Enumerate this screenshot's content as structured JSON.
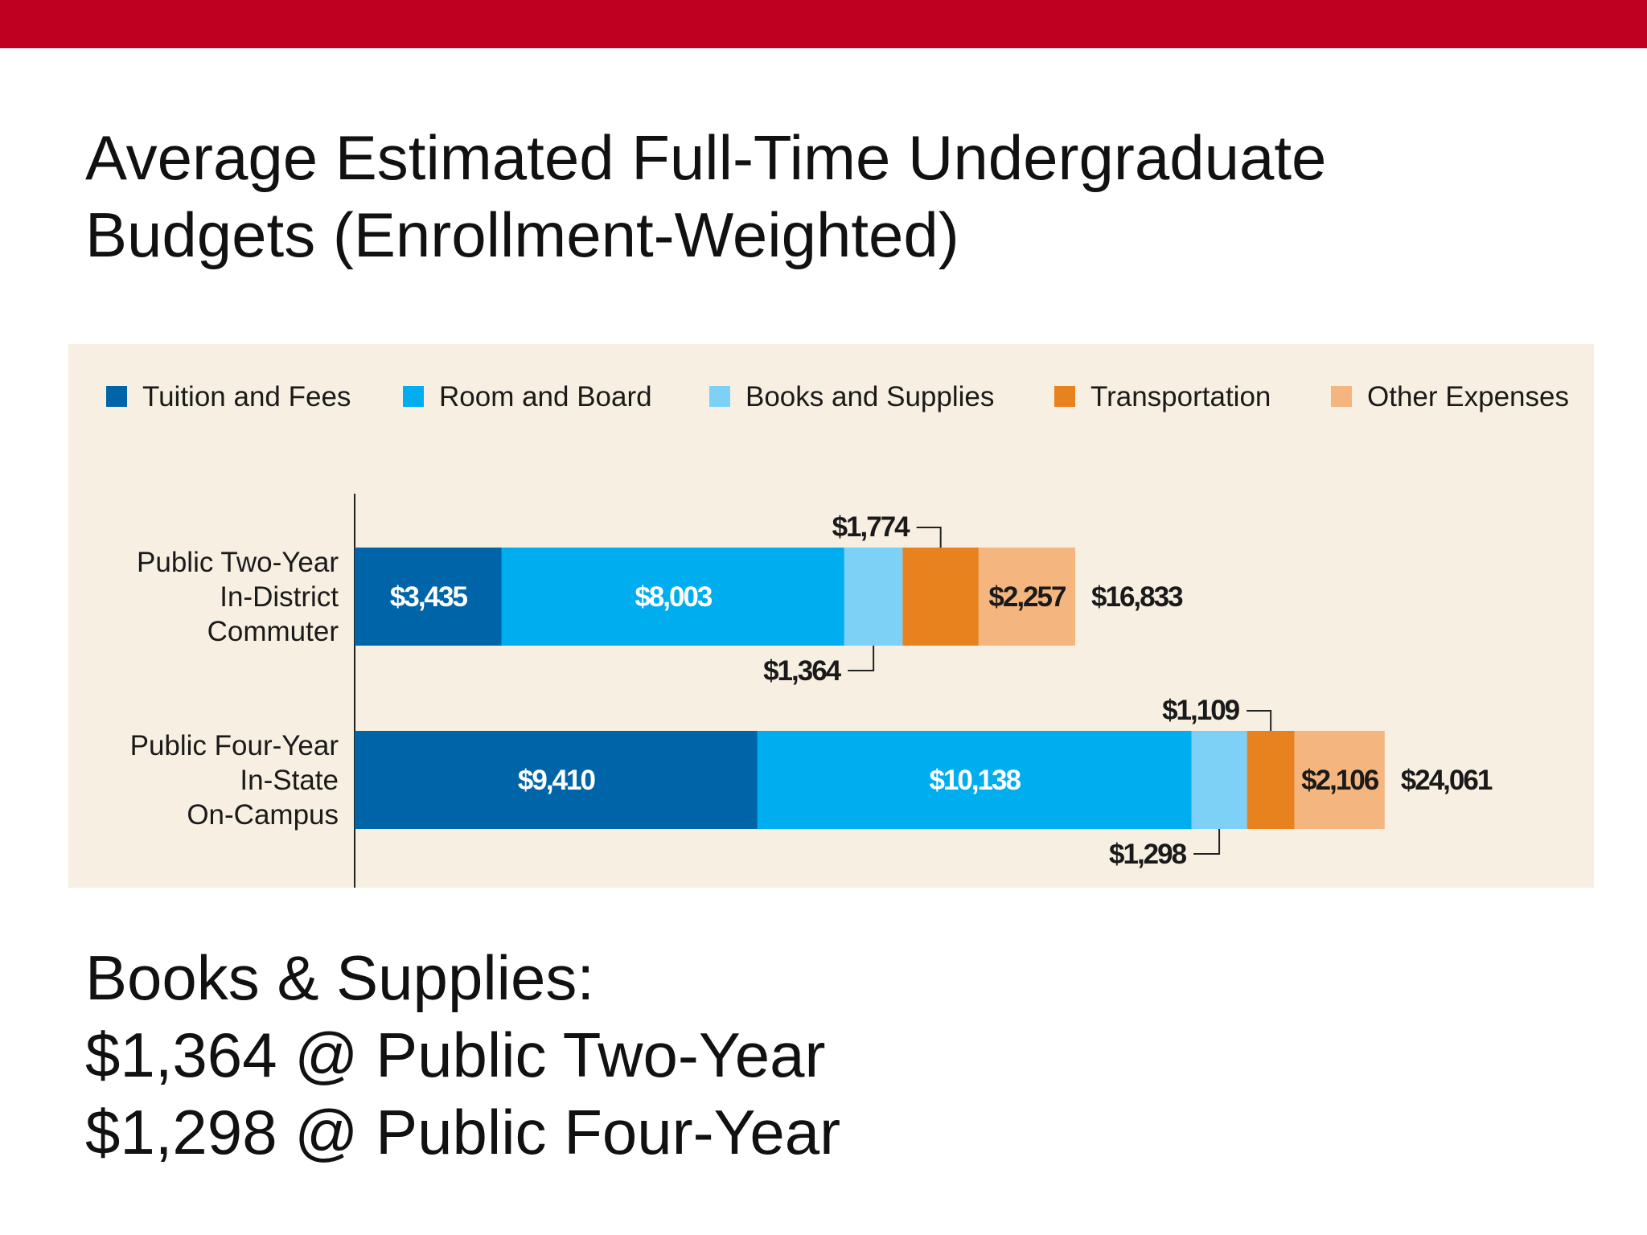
{
  "slide": {
    "title_lines": [
      "Average Estimated Full-Time Undergraduate",
      "Budgets (Enrollment-Weighted)"
    ],
    "caption_lines": [
      "Books & Supplies:",
      "$1,364 @ Public Two-Year",
      "$1,298 @ Public Four-Year"
    ]
  },
  "colors": {
    "top_bar": "#c00020",
    "panel_background": "#f7efe2"
  },
  "chart_data": {
    "type": "bar",
    "orientation": "horizontal",
    "stacked": true,
    "xlim": [
      0,
      25000
    ],
    "grid": false,
    "legend_position": "top",
    "categories": [
      [
        "Public Two-Year",
        "In-District",
        "Commuter"
      ],
      [
        "Public Four-Year",
        "In-State",
        "On-Campus"
      ]
    ],
    "series": [
      {
        "name": "Tuition and Fees",
        "color": "#0065a8",
        "values": [
          3435,
          9410
        ],
        "labels": [
          "$3,435",
          "$9,410"
        ]
      },
      {
        "name": "Room and Board",
        "color": "#00aeef",
        "values": [
          8003,
          10138
        ],
        "labels": [
          "$8,003",
          "$10,138"
        ]
      },
      {
        "name": "Books and Supplies",
        "color": "#7dd1f6",
        "values": [
          1364,
          1298
        ],
        "labels": [
          "$1,364",
          "$1,298"
        ]
      },
      {
        "name": "Transportation",
        "color": "#e8821e",
        "values": [
          1774,
          1109
        ],
        "labels": [
          "$1,774",
          "$1,109"
        ]
      },
      {
        "name": "Other Expenses",
        "color": "#f4b57e",
        "values": [
          2257,
          2106
        ],
        "labels": [
          "$2,257",
          "$2,106"
        ]
      }
    ],
    "totals": [
      16833,
      24061
    ],
    "total_labels": [
      "$16,833",
      "$24,061"
    ]
  }
}
